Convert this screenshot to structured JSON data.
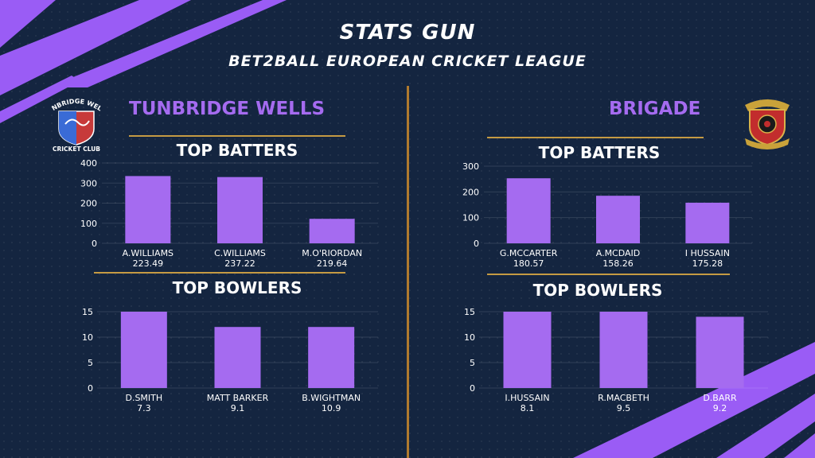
{
  "header": {
    "title": "STATS GUN",
    "subtitle": "BET2BALL EUROPEAN CRICKET LEAGUE"
  },
  "teams": {
    "left": {
      "name": "TUNBRIDGE WELLS",
      "crest_text_top": "TUNBRIDGE WELLS",
      "crest_text_bottom": "CRICKET CLUB"
    },
    "right": {
      "name": "BRIGADE"
    }
  },
  "colors": {
    "background": "#142540",
    "bar": "#a56bf0",
    "accent_gold": "#c59a43",
    "team_name": "#a56bf0"
  },
  "chart_data": [
    {
      "type": "bar",
      "title": "TOP BATTERS",
      "team": "TUNBRIDGE WELLS",
      "categories": [
        "A.WILLIAMS",
        "C.WILLIAMS",
        "M.O'RIORDAN"
      ],
      "category_sublabels": [
        "223.49",
        "237.22",
        "219.64"
      ],
      "values": [
        335,
        330,
        122
      ],
      "ylim": [
        0,
        400
      ],
      "yticks": [
        0,
        100,
        200,
        300,
        400
      ],
      "grid": true
    },
    {
      "type": "bar",
      "title": "TOP BOWLERS",
      "team": "TUNBRIDGE WELLS",
      "categories": [
        "D.SMITH",
        "MATT BARKER",
        "B.WIGHTMAN"
      ],
      "category_sublabels": [
        "7.3",
        "9.1",
        "10.9"
      ],
      "values": [
        15,
        12,
        12
      ],
      "ylim": [
        0,
        15
      ],
      "yticks": [
        0,
        5,
        10,
        15
      ],
      "grid": true
    },
    {
      "type": "bar",
      "title": "TOP BATTERS",
      "team": "BRIGADE",
      "categories": [
        "G.MCCARTER",
        "A.MCDAID",
        "I HUSSAIN"
      ],
      "category_sublabels": [
        "180.57",
        "158.26",
        "175.28"
      ],
      "values": [
        253,
        185,
        158
      ],
      "ylim": [
        0,
        300
      ],
      "yticks": [
        0,
        100,
        200,
        300
      ],
      "grid": true
    },
    {
      "type": "bar",
      "title": "TOP BOWLERS",
      "team": "BRIGADE",
      "categories": [
        "I.HUSSAIN",
        "R.MACBETH",
        "D.BARR"
      ],
      "category_sublabels": [
        "8.1",
        "9.5",
        "9.2"
      ],
      "values": [
        15,
        15,
        14
      ],
      "ylim": [
        0,
        15
      ],
      "yticks": [
        0,
        5,
        10,
        15
      ],
      "grid": true
    }
  ]
}
